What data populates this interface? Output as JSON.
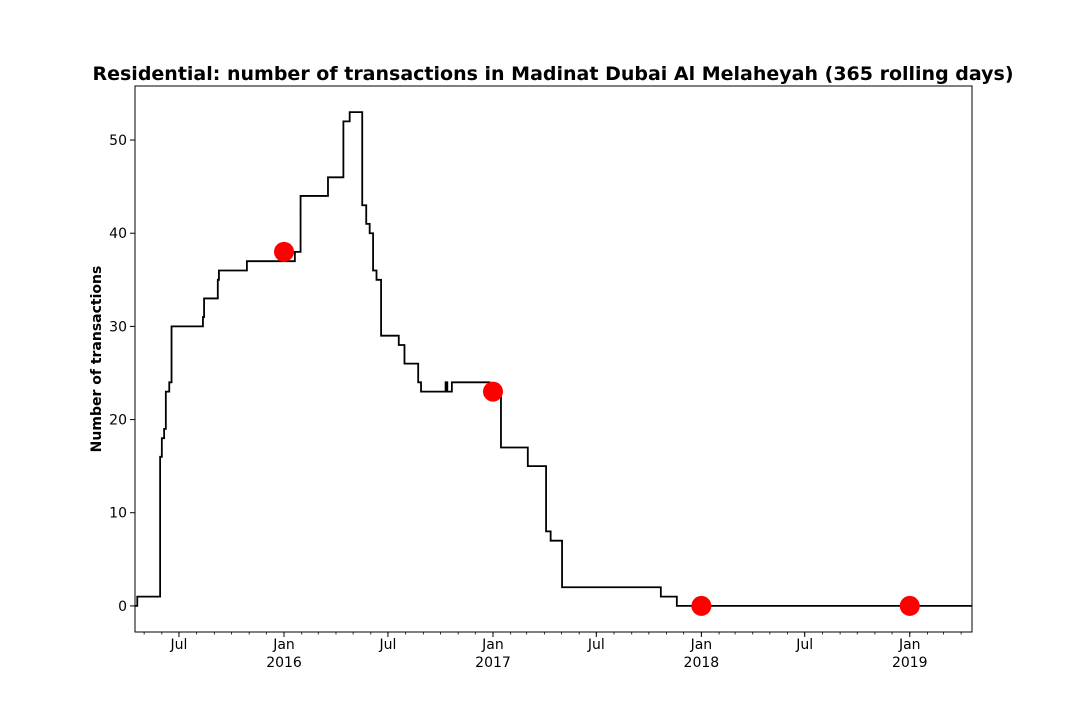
{
  "chart_data": {
    "type": "line",
    "title": "Residential: number of transactions in Madinat Dubai Al Melaheyah (365 rolling days)",
    "xlabel": "",
    "ylabel": "Number of transactions",
    "xlim": [
      "2015-04-15",
      "2019-04-20"
    ],
    "ylim": [
      -2.8,
      55.8
    ],
    "yticks": [
      0,
      10,
      20,
      30,
      40,
      50
    ],
    "xticks": [
      {
        "date": "2015-07-01",
        "label": "Jul",
        "year": ""
      },
      {
        "date": "2016-01-01",
        "label": "Jan",
        "year": "2016"
      },
      {
        "date": "2016-07-01",
        "label": "Jul",
        "year": ""
      },
      {
        "date": "2017-01-01",
        "label": "Jan",
        "year": "2017"
      },
      {
        "date": "2017-07-01",
        "label": "Jul",
        "year": ""
      },
      {
        "date": "2018-01-01",
        "label": "Jan",
        "year": "2018"
      },
      {
        "date": "2018-07-01",
        "label": "Jul",
        "year": ""
      },
      {
        "date": "2019-01-01",
        "label": "Jan",
        "year": "2019"
      }
    ],
    "grid": false,
    "series": [
      {
        "color": "#000000",
        "step": true,
        "points": [
          [
            "2015-04-15",
            0
          ],
          [
            "2015-04-19",
            1
          ],
          [
            "2015-05-29",
            16
          ],
          [
            "2015-06-01",
            18
          ],
          [
            "2015-06-05",
            19
          ],
          [
            "2015-06-08",
            23
          ],
          [
            "2015-06-14",
            24
          ],
          [
            "2015-06-18",
            30
          ],
          [
            "2015-08-12",
            31
          ],
          [
            "2015-08-14",
            33
          ],
          [
            "2015-09-07",
            35
          ],
          [
            "2015-09-09",
            36
          ],
          [
            "2015-10-28",
            37
          ],
          [
            "2016-01-20",
            38
          ],
          [
            "2016-01-30",
            44
          ],
          [
            "2016-03-18",
            46
          ],
          [
            "2016-04-14",
            52
          ],
          [
            "2016-04-25",
            53
          ],
          [
            "2016-05-17",
            43
          ],
          [
            "2016-05-24",
            41
          ],
          [
            "2016-05-30",
            40
          ],
          [
            "2016-06-05",
            36
          ],
          [
            "2016-06-11",
            35
          ],
          [
            "2016-06-19",
            29
          ],
          [
            "2016-07-20",
            28
          ],
          [
            "2016-07-30",
            26
          ],
          [
            "2016-08-23",
            24
          ],
          [
            "2016-08-28",
            23
          ],
          [
            "2016-10-10",
            24
          ],
          [
            "2016-10-13",
            23
          ],
          [
            "2016-10-21",
            24
          ],
          [
            "2016-12-26",
            23
          ],
          [
            "2017-01-15",
            17
          ],
          [
            "2017-03-03",
            15
          ],
          [
            "2017-04-04",
            8
          ],
          [
            "2017-04-12",
            7
          ],
          [
            "2017-05-02",
            2
          ],
          [
            "2017-10-22",
            1
          ],
          [
            "2017-11-19",
            0
          ],
          [
            "2019-04-20",
            0
          ]
        ]
      }
    ],
    "markers": {
      "color": "#ff0000",
      "points": [
        [
          "2016-01-01",
          38
        ],
        [
          "2017-01-01",
          23
        ],
        [
          "2018-01-01",
          0
        ],
        [
          "2019-01-01",
          0
        ]
      ]
    }
  }
}
